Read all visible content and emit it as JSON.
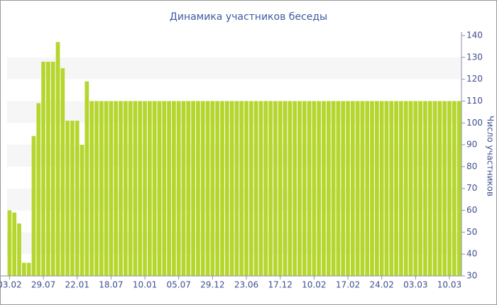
{
  "chart_data": {
    "type": "bar",
    "title": "Динамика участников беседы",
    "y_axis_label": "Число участников",
    "categories": [
      "03.02",
      null,
      null,
      null,
      null,
      null,
      null,
      "29.07",
      null,
      null,
      null,
      null,
      null,
      null,
      "22.01",
      null,
      null,
      null,
      null,
      null,
      null,
      "18.07",
      null,
      null,
      null,
      null,
      null,
      null,
      "10.01",
      null,
      null,
      null,
      null,
      null,
      null,
      "05.07",
      null,
      null,
      null,
      null,
      null,
      null,
      "29.12",
      null,
      null,
      null,
      null,
      null,
      null,
      "23.06",
      null,
      null,
      null,
      null,
      null,
      null,
      "17.12",
      null,
      null,
      null,
      null,
      null,
      null,
      "10.02",
      null,
      null,
      null,
      null,
      null,
      null,
      "17.02",
      null,
      null,
      null,
      null,
      null,
      null,
      "24.02",
      null,
      null,
      null,
      null,
      null,
      null,
      "03.03",
      null,
      null,
      null,
      null,
      null,
      null,
      "10.03",
      null,
      null
    ],
    "values": [
      60,
      59,
      54,
      36,
      36,
      94,
      109,
      128,
      128,
      128,
      137,
      125,
      101,
      101,
      101,
      90,
      119,
      110,
      110,
      110,
      110,
      110,
      110,
      110,
      110,
      110,
      110,
      110,
      110,
      110,
      110,
      110,
      110,
      110,
      110,
      110,
      110,
      110,
      110,
      110,
      110,
      110,
      110,
      110,
      110,
      110,
      110,
      110,
      110,
      110,
      110,
      110,
      110,
      110,
      110,
      110,
      110,
      110,
      110,
      110,
      110,
      110,
      110,
      110,
      110,
      110,
      110,
      110,
      110,
      110,
      110,
      110,
      110,
      110,
      110,
      110,
      110,
      110,
      110,
      110,
      110,
      110,
      110,
      110,
      110,
      110,
      110,
      110,
      110,
      110,
      110,
      110,
      110,
      110
    ],
    "color": "#b5d62c",
    "ylim": [
      30,
      140
    ],
    "yticks": [
      30,
      40,
      50,
      60,
      70,
      80,
      90,
      100,
      110,
      120,
      130,
      140
    ],
    "y_axis_side": "right",
    "grid": "bands"
  }
}
